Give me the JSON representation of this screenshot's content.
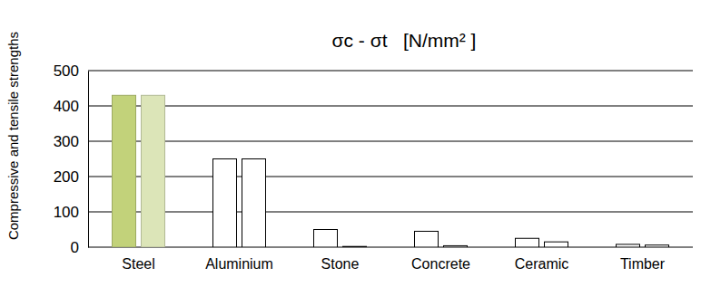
{
  "chart_data": {
    "type": "bar",
    "title": "σc - σt   [N/mm² ]",
    "y_label": "Compressive and tensile strengths",
    "categories": [
      "Steel",
      "Aluminium",
      "Stone",
      "Concrete",
      "Ceramic",
      "Timber"
    ],
    "series": [
      {
        "values": [
          430,
          250,
          50,
          45,
          25,
          8
        ],
        "colors": [
          "#c2d27a",
          "#ffffff",
          "#ffffff",
          "#ffffff",
          "#ffffff",
          "#ffffff"
        ]
      },
      {
        "values": [
          430,
          250,
          2,
          4,
          15,
          6
        ],
        "colors": [
          "#dce5b8",
          "#ffffff",
          "#ffffff",
          "#ffffff",
          "#ffffff",
          "#ffffff"
        ]
      }
    ],
    "ylim": [
      0,
      500
    ],
    "yticks": [
      0,
      100,
      200,
      300,
      400,
      500
    ],
    "grid": true
  }
}
